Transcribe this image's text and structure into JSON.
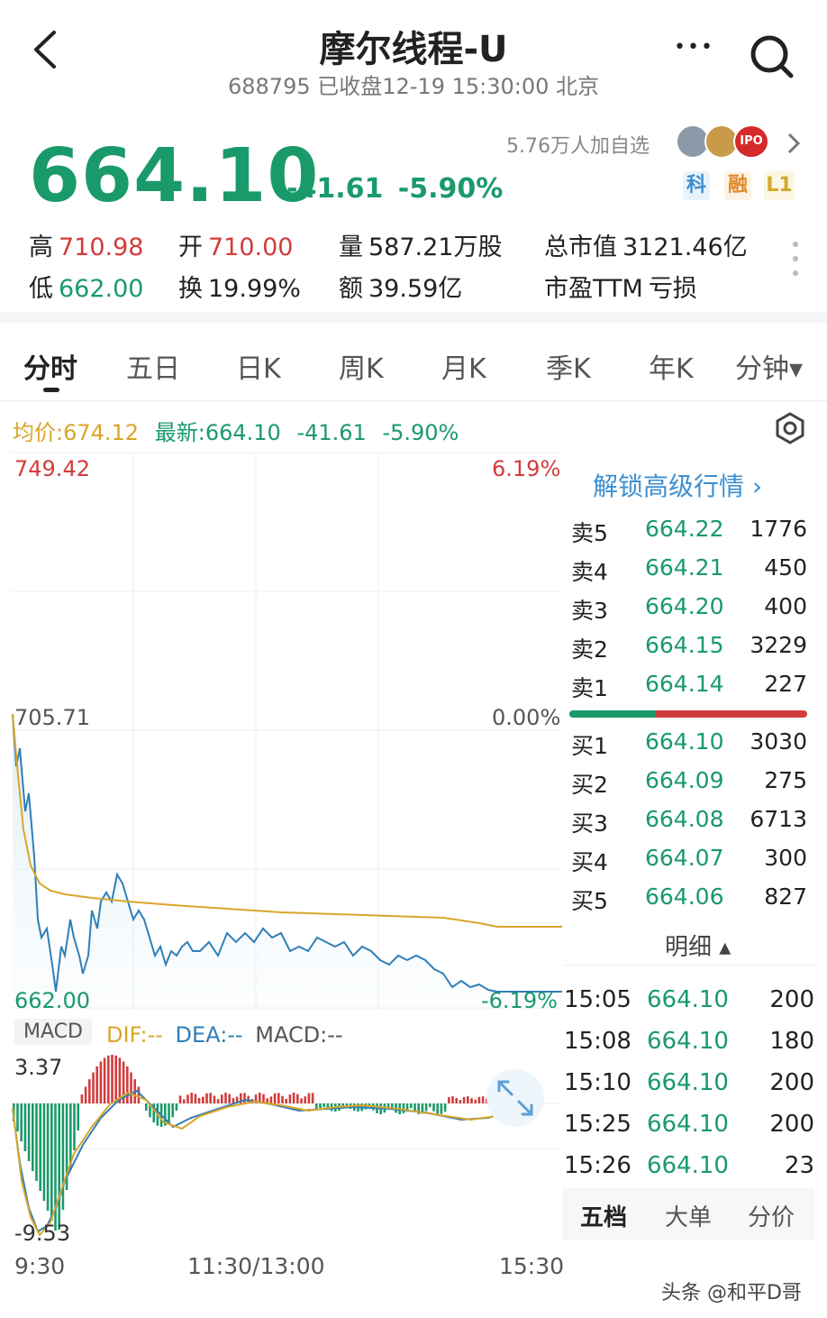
{
  "header": {
    "back_glyph": "‹",
    "title": "摩尔线程-U",
    "subtitle": "688795 已收盘12-19 15:30:00 北京",
    "more_glyph": "•••",
    "search_icon": "search-icon"
  },
  "quote": {
    "price": "664.10",
    "change": "-41.61",
    "change_pct": "-5.90%",
    "watchers": "5.76万人加自选",
    "avatar_badge": "IPO",
    "badges": [
      "科",
      "融",
      "L1"
    ],
    "colors": {
      "down": "#1a9a6a",
      "up": "#d23c3c",
      "avg": "#d9a52a",
      "macd_dea": "#2f7fb8"
    }
  },
  "stats": {
    "high_label": "高",
    "high": "710.98",
    "open_label": "开",
    "open": "710.00",
    "volume_label": "量",
    "volume": "587.21万股",
    "mcap_label": "总市值",
    "mcap": "3121.46亿",
    "low_label": "低",
    "low": "662.00",
    "turnover_label": "换",
    "turnover": "19.99%",
    "amount_label": "额",
    "amount": "39.59亿",
    "pe_label": "市盈TTM",
    "pe": "亏损"
  },
  "tabs": [
    "分时",
    "五日",
    "日K",
    "周K",
    "月K",
    "季K",
    "年K",
    "分钟▾"
  ],
  "intraday": {
    "avg_label": "均价:",
    "avg": "674.12",
    "last_label": "最新:",
    "last": "664.10",
    "last_change": "-41.61",
    "last_pct": "-5.90%",
    "y_top": "749.42",
    "y_mid": "705.71",
    "y_bottom": "662.00",
    "pct_top": "6.19%",
    "pct_mid": "0.00%",
    "pct_bottom": "-6.19%",
    "x_start": "9:30",
    "x_mid": "11:30/13:00",
    "x_end": "15:30"
  },
  "macd": {
    "label": "MACD",
    "dif": "DIF:--",
    "dea": "DEA:--",
    "macd": "MACD:--",
    "y_top": "3.37",
    "y_bottom": "-9.53"
  },
  "orderbook": {
    "unlock": "解锁高级行情 ›",
    "asks": [
      {
        "label": "卖5",
        "price": "664.22",
        "qty": "1776"
      },
      {
        "label": "卖4",
        "price": "664.21",
        "qty": "450"
      },
      {
        "label": "卖3",
        "price": "664.20",
        "qty": "400"
      },
      {
        "label": "卖2",
        "price": "664.15",
        "qty": "3229"
      },
      {
        "label": "卖1",
        "price": "664.14",
        "qty": "227"
      }
    ],
    "bids": [
      {
        "label": "买1",
        "price": "664.10",
        "qty": "3030"
      },
      {
        "label": "买2",
        "price": "664.09",
        "qty": "275"
      },
      {
        "label": "买3",
        "price": "664.08",
        "qty": "6713"
      },
      {
        "label": "买4",
        "price": "664.07",
        "qty": "300"
      },
      {
        "label": "买5",
        "price": "664.06",
        "qty": "827"
      }
    ],
    "detail_label": "明细 ▴",
    "ticks": [
      {
        "time": "15:05",
        "price": "664.10",
        "qty": "200"
      },
      {
        "time": "15:08",
        "price": "664.10",
        "qty": "180"
      },
      {
        "time": "15:10",
        "price": "664.10",
        "qty": "200"
      },
      {
        "time": "15:25",
        "price": "664.10",
        "qty": "200"
      },
      {
        "time": "15:26",
        "price": "664.10",
        "qty": "23"
      }
    ],
    "bottom_tabs": [
      "五档",
      "大单",
      "分价"
    ]
  },
  "watermark": "头条 @和平D哥"
}
